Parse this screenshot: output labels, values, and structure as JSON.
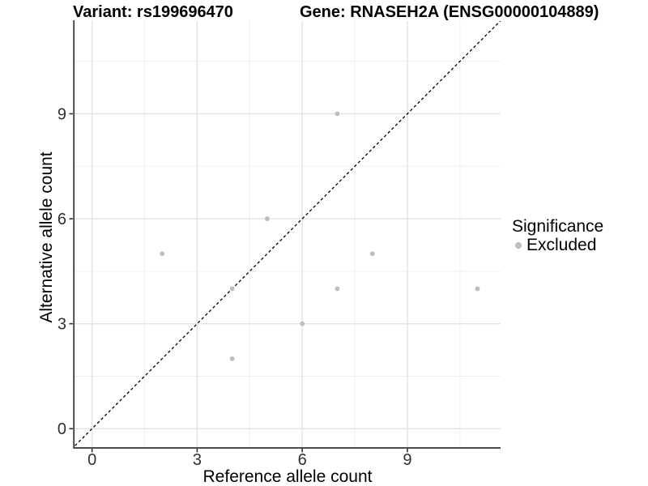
{
  "titles": {
    "variant": "Variant: rs199696470",
    "gene": "Gene: RNASEH2A (ENSG00000104889)"
  },
  "chart_data": {
    "type": "scatter",
    "title_left": "Variant: rs199696470",
    "title_right": "Gene: RNASEH2A (ENSG00000104889)",
    "xlabel": "Reference allele count",
    "ylabel": "Alternative allele count",
    "x_ticks": [
      0,
      3,
      6,
      9
    ],
    "y_ticks": [
      0,
      3,
      6,
      9
    ],
    "x_minor_ticks": [
      1.5,
      4.5,
      7.5,
      10.5
    ],
    "y_minor_ticks": [
      1.5,
      4.5,
      7.5,
      10.5
    ],
    "xlim": [
      -0.5,
      11.66
    ],
    "ylim": [
      -0.55,
      11.65
    ],
    "grid": true,
    "reference_line": {
      "type": "identity",
      "slope": 1,
      "intercept": 0,
      "style": "dashed",
      "color": "#000000"
    },
    "series": [
      {
        "name": "Excluded",
        "color": "#bdbdbd",
        "points": [
          [
            2,
            5
          ],
          [
            4,
            2
          ],
          [
            4,
            4
          ],
          [
            5,
            6
          ],
          [
            6,
            3
          ],
          [
            7,
            4
          ],
          [
            7,
            9
          ],
          [
            8,
            5
          ],
          [
            11,
            4
          ]
        ]
      }
    ],
    "legend": {
      "title": "Significance",
      "position": "right",
      "entries": [
        {
          "label": "Excluded",
          "color": "#bdbdbd"
        }
      ]
    }
  },
  "colors": {
    "background": "#ffffff",
    "major_grid": "#e3e3e3",
    "minor_grid": "#efefef",
    "axis_line": "#333333",
    "tick_label": "#303030",
    "point": "#bdbdbd",
    "dashed_line": "#000000"
  }
}
